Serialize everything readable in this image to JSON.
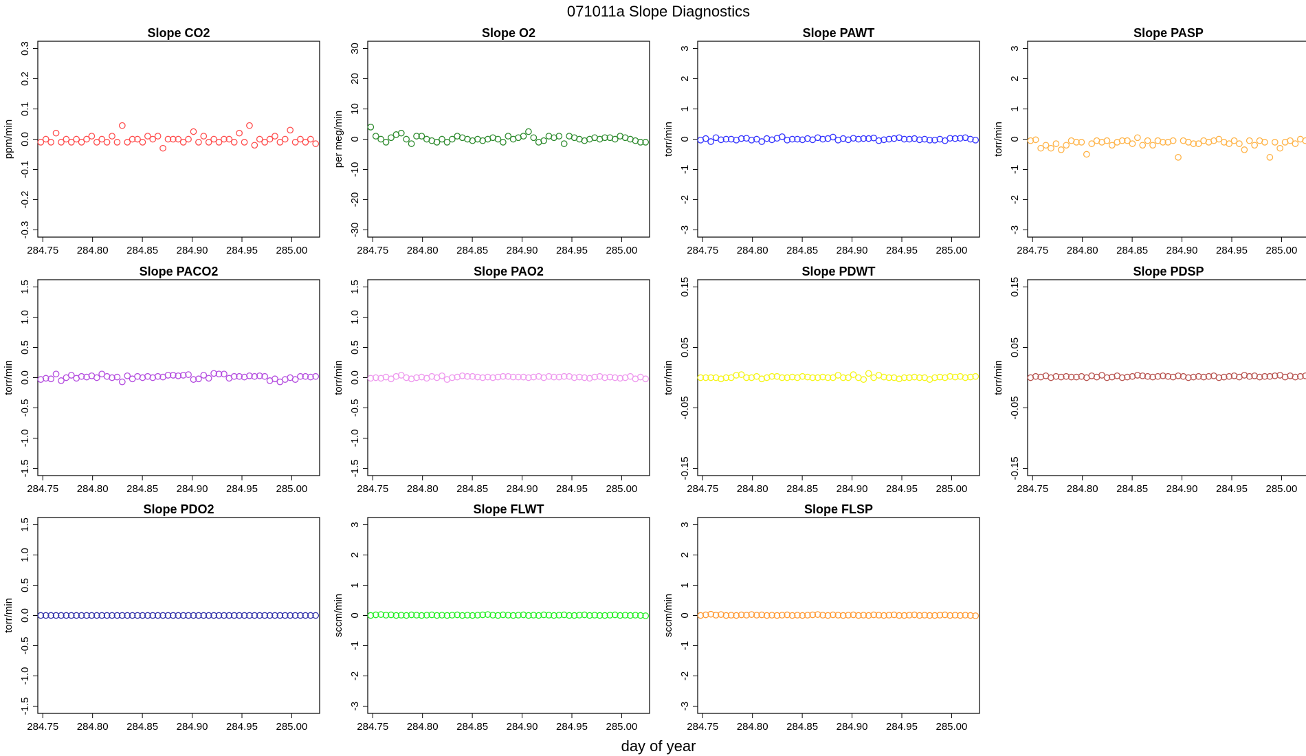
{
  "figure": {
    "title": "071011a   Slope Diagnostics",
    "xlabel": "day of year"
  },
  "chart_data": [
    {
      "type": "scatter",
      "title": "Slope CO2",
      "ylabel": "ppm/min",
      "color": "#ff4d4d",
      "ylim": [
        -0.3,
        0.3
      ],
      "yticks": [
        "-0.3",
        "-0.2",
        "-0.1",
        "0.0",
        "0.1",
        "0.2",
        "0.3"
      ],
      "xlim": [
        284.745,
        285.028
      ],
      "xticks": [
        "284.75",
        "284.80",
        "284.85",
        "284.90",
        "284.95",
        "285.00"
      ],
      "values": [
        -0.01,
        0.0,
        -0.01,
        0.02,
        -0.01,
        0.0,
        -0.01,
        0.0,
        -0.01,
        0.0,
        0.01,
        -0.01,
        0.0,
        -0.01,
        0.01,
        -0.01,
        0.045,
        -0.01,
        0.0,
        0.0,
        -0.01,
        0.01,
        0.0,
        0.01,
        -0.03,
        0.0,
        0.0,
        0.0,
        -0.01,
        0.0,
        0.025,
        -0.01,
        0.01,
        -0.01,
        0.0,
        -0.01,
        0.0,
        0.0,
        -0.01,
        0.02,
        -0.01,
        0.045,
        -0.02,
        0.0,
        -0.01,
        0.0,
        0.01,
        -0.01,
        0.0,
        0.03,
        -0.01,
        0.0,
        -0.01,
        0.0,
        -0.015
      ]
    },
    {
      "type": "scatter",
      "title": "Slope O2",
      "ylabel": "per meg/min",
      "color": "#2e8b2e",
      "ylim": [
        -30,
        30
      ],
      "yticks": [
        "-30",
        "-20",
        "-10",
        "0",
        "10",
        "20",
        "30"
      ],
      "xlim": [
        284.745,
        285.028
      ],
      "xticks": [
        "284.75",
        "284.80",
        "284.85",
        "284.90",
        "284.95",
        "285.00"
      ],
      "values": [
        4.0,
        1.0,
        0.0,
        -1.0,
        0.5,
        1.5,
        2.0,
        0.0,
        -1.5,
        1.0,
        1.0,
        0.0,
        -0.5,
        -1.0,
        0.0,
        -1.0,
        0.0,
        1.0,
        0.5,
        0.0,
        -0.5,
        0.0,
        -0.5,
        0.0,
        0.5,
        0.0,
        -1.0,
        1.0,
        0.0,
        0.5,
        1.0,
        2.5,
        0.5,
        -1.0,
        -0.5,
        1.0,
        0.5,
        1.0,
        -1.5,
        1.0,
        0.5,
        0.0,
        -0.5,
        0.0,
        0.5,
        0.0,
        0.5,
        0.5,
        0.0,
        1.0,
        0.5,
        0.0,
        -0.5,
        -1.0,
        -1.0
      ]
    },
    {
      "type": "scatter",
      "title": "Slope PAWT",
      "ylabel": "torr/min",
      "color": "#3333ff",
      "ylim": [
        -3,
        3
      ],
      "yticks": [
        "-3",
        "-2",
        "-1",
        "0",
        "1",
        "2",
        "3"
      ],
      "xlim": [
        284.745,
        285.028
      ],
      "xticks": [
        "284.75",
        "284.80",
        "284.85",
        "284.90",
        "284.95",
        "285.00"
      ],
      "values": [
        -0.03,
        0.02,
        -0.08,
        0.05,
        -0.02,
        0.0,
        0.0,
        -0.03,
        0.02,
        0.03,
        -0.03,
        0.0,
        -0.08,
        0.02,
        -0.02,
        0.03,
        0.08,
        -0.03,
        0.0,
        0.0,
        -0.02,
        0.02,
        -0.02,
        0.05,
        0.0,
        0.02,
        0.07,
        -0.03,
        0.02,
        -0.02,
        0.03,
        0.0,
        0.02,
        0.02,
        0.04,
        -0.05,
        -0.02,
        0.0,
        0.02,
        0.05,
        0.0,
        0.0,
        0.02,
        -0.02,
        0.0,
        -0.03,
        -0.03,
        0.0,
        -0.05,
        0.03,
        0.02,
        0.03,
        0.05,
        0.0,
        -0.03
      ]
    },
    {
      "type": "scatter",
      "title": "Slope PASP",
      "ylabel": "torr/min",
      "color": "#ffb347",
      "ylim": [
        -3,
        3
      ],
      "yticks": [
        "-3",
        "-2",
        "-1",
        "0",
        "1",
        "2",
        "3"
      ],
      "xlim": [
        284.745,
        285.028
      ],
      "xticks": [
        "284.75",
        "284.80",
        "284.85",
        "284.90",
        "284.95",
        "285.00"
      ],
      "values": [
        -0.05,
        -0.02,
        -0.3,
        -0.2,
        -0.3,
        -0.15,
        -0.35,
        -0.2,
        -0.05,
        -0.1,
        -0.1,
        -0.5,
        -0.15,
        -0.05,
        -0.1,
        -0.05,
        -0.2,
        -0.1,
        -0.05,
        -0.05,
        -0.15,
        0.05,
        -0.2,
        -0.05,
        -0.2,
        -0.05,
        -0.1,
        -0.1,
        -0.05,
        -0.6,
        -0.05,
        -0.1,
        -0.15,
        -0.15,
        -0.05,
        -0.1,
        -0.05,
        0.0,
        -0.1,
        -0.15,
        -0.05,
        -0.15,
        -0.35,
        -0.05,
        -0.2,
        -0.05,
        -0.1,
        -0.6,
        -0.1,
        -0.3,
        -0.1,
        -0.05,
        -0.15,
        0.0,
        -0.05
      ]
    },
    {
      "type": "scatter",
      "title": "Slope PACO2",
      "ylabel": "torr/min",
      "color": "#b44ddf",
      "ylim": [
        -1.5,
        1.5
      ],
      "yticks": [
        "-1.5",
        "-1.0",
        "-0.5",
        "0.0",
        "0.5",
        "1.0",
        "1.5"
      ],
      "xlim": [
        284.745,
        285.028
      ],
      "xticks": [
        "284.75",
        "284.80",
        "284.85",
        "284.90",
        "284.95",
        "285.00"
      ],
      "values": [
        -0.03,
        -0.01,
        -0.02,
        0.06,
        -0.05,
        0.0,
        0.04,
        -0.01,
        0.02,
        0.01,
        0.03,
        0.0,
        0.06,
        0.02,
        0.0,
        0.01,
        -0.07,
        0.03,
        -0.02,
        0.02,
        0.0,
        0.02,
        0.0,
        0.02,
        0.01,
        0.04,
        0.04,
        0.03,
        0.04,
        0.05,
        -0.03,
        -0.02,
        0.04,
        -0.01,
        0.07,
        0.06,
        0.06,
        -0.01,
        0.02,
        0.02,
        0.01,
        0.03,
        0.02,
        0.03,
        0.02,
        -0.05,
        -0.02,
        -0.07,
        -0.03,
        0.0,
        -0.03,
        0.02,
        0.02,
        0.01,
        0.02
      ]
    },
    {
      "type": "scatter",
      "title": "Slope PAO2",
      "ylabel": "torr/min",
      "color": "#ee99ee",
      "ylim": [
        -1.5,
        1.5
      ],
      "yticks": [
        "-1.5",
        "-1.0",
        "-0.5",
        "0.0",
        "0.5",
        "1.0",
        "1.5"
      ],
      "xlim": [
        284.745,
        285.028
      ],
      "xticks": [
        "284.75",
        "284.80",
        "284.85",
        "284.90",
        "284.95",
        "285.00"
      ],
      "values": [
        -0.01,
        0.0,
        -0.01,
        0.01,
        -0.02,
        0.02,
        0.04,
        0.0,
        -0.02,
        0.0,
        0.01,
        -0.01,
        0.02,
        0.0,
        0.03,
        -0.03,
        0.0,
        0.01,
        0.03,
        0.02,
        0.02,
        0.01,
        0.0,
        0.01,
        0.0,
        0.01,
        0.02,
        0.02,
        0.01,
        0.01,
        0.01,
        0.0,
        0.01,
        0.02,
        0.0,
        0.02,
        0.01,
        0.01,
        0.02,
        0.02,
        0.0,
        0.01,
        0.0,
        -0.01,
        0.01,
        0.02,
        0.0,
        0.01,
        0.0,
        -0.01,
        0.0,
        0.02,
        -0.02,
        0.01,
        -0.02
      ]
    },
    {
      "type": "scatter",
      "title": "Slope PDWT",
      "ylabel": "torr/min",
      "color": "#f5f51a",
      "ylim": [
        -0.15,
        0.15
      ],
      "yticks": [
        "-0.15",
        "-0.05",
        "0.05",
        "0.15"
      ],
      "xlim": [
        284.745,
        285.028
      ],
      "xticks": [
        "284.75",
        "284.80",
        "284.85",
        "284.90",
        "284.95",
        "285.00"
      ],
      "values": [
        0.0,
        0.0,
        0.0,
        0.0,
        -0.002,
        0.0,
        0.0,
        0.004,
        0.005,
        0.0,
        0.0,
        0.002,
        -0.002,
        0.0,
        0.002,
        0.002,
        0.0,
        0.0,
        0.001,
        0.0,
        0.002,
        0.001,
        0.0,
        0.0,
        0.001,
        0.0,
        0.0,
        0.004,
        0.0,
        0.0,
        0.005,
        0.0,
        -0.003,
        0.007,
        0.0,
        0.004,
        0.001,
        0.0,
        0.0,
        -0.002,
        0.0,
        0.0,
        0.001,
        0.0,
        0.0,
        -0.003,
        0.0,
        0.001,
        0.0,
        0.002,
        0.001,
        0.002,
        0.0,
        0.001,
        0.002
      ]
    },
    {
      "type": "scatter",
      "title": "Slope PDSP",
      "ylabel": "torr/min",
      "color": "#b85450",
      "ylim": [
        -0.15,
        0.15
      ],
      "yticks": [
        "-0.15",
        "-0.05",
        "0.05",
        "0.15"
      ],
      "xlim": [
        284.745,
        285.028
      ],
      "xticks": [
        "284.75",
        "284.80",
        "284.85",
        "284.90",
        "284.95",
        "285.00"
      ],
      "values": [
        0.0,
        0.002,
        0.001,
        0.003,
        0.0,
        0.002,
        0.001,
        0.002,
        0.001,
        0.001,
        0.002,
        0.0,
        0.003,
        0.001,
        0.004,
        0.0,
        0.001,
        0.003,
        0.0,
        0.001,
        0.002,
        0.004,
        0.003,
        0.002,
        0.001,
        0.002,
        0.003,
        0.002,
        0.001,
        0.003,
        0.002,
        0.0,
        0.001,
        0.002,
        0.001,
        0.002,
        0.003,
        0.0,
        0.001,
        0.002,
        0.003,
        0.001,
        0.004,
        0.002,
        0.003,
        0.001,
        0.002,
        0.002,
        0.003,
        0.004,
        0.001,
        0.003,
        0.001,
        0.002,
        0.003
      ]
    },
    {
      "type": "scatter",
      "title": "Slope PDO2",
      "ylabel": "torr/min",
      "color": "#3333aa",
      "ylim": [
        -1.5,
        1.5
      ],
      "yticks": [
        "-1.5",
        "-1.0",
        "-0.5",
        "0.0",
        "0.5",
        "1.0",
        "1.5"
      ],
      "xlim": [
        284.745,
        285.028
      ],
      "xticks": [
        "284.75",
        "284.80",
        "284.85",
        "284.90",
        "284.95",
        "285.00"
      ],
      "values": [
        0,
        0,
        0,
        0,
        0,
        0,
        0,
        0,
        0,
        0,
        0,
        0,
        0,
        0,
        0,
        0,
        0,
        0,
        0,
        0,
        0,
        0,
        0,
        0,
        0,
        0,
        0,
        0,
        0,
        0,
        0,
        0,
        0,
        0,
        0,
        0,
        0,
        0,
        0,
        0,
        0,
        0,
        0,
        0,
        0,
        0,
        0,
        0,
        0,
        0,
        0,
        0,
        0,
        0,
        0
      ]
    },
    {
      "type": "scatter",
      "title": "Slope FLWT",
      "ylabel": "sccm/min",
      "color": "#22ee22",
      "ylim": [
        -3,
        3
      ],
      "yticks": [
        "-3",
        "-2",
        "-1",
        "0",
        "1",
        "2",
        "3"
      ],
      "xlim": [
        284.745,
        285.028
      ],
      "xticks": [
        "284.75",
        "284.80",
        "284.85",
        "284.90",
        "284.95",
        "285.00"
      ],
      "values": [
        0.0,
        0.02,
        0.03,
        0.01,
        0.02,
        0.0,
        0.01,
        0.0,
        0.02,
        0.01,
        0.0,
        0.01,
        0.02,
        0.0,
        0.01,
        0.0,
        0.01,
        0.02,
        0.0,
        0.01,
        0.0,
        0.01,
        0.02,
        0.03,
        0.01,
        0.0,
        0.02,
        0.01,
        0.0,
        0.01,
        0.02,
        0.0,
        0.01,
        0.0,
        0.02,
        0.01,
        0.0,
        0.01,
        0.02,
        0.0,
        0.0,
        0.01,
        0.02,
        0.0,
        0.01,
        0.0,
        0.0,
        0.01,
        0.02,
        0.0,
        0.01,
        0.0,
        0.01,
        0.0,
        -0.01
      ]
    },
    {
      "type": "scatter",
      "title": "Slope FLSP",
      "ylabel": "sccm/min",
      "color": "#ff9933",
      "ylim": [
        -3,
        3
      ],
      "yticks": [
        "-3",
        "-2",
        "-1",
        "0",
        "1",
        "2",
        "3"
      ],
      "xlim": [
        284.745,
        285.028
      ],
      "xticks": [
        "284.75",
        "284.80",
        "284.85",
        "284.90",
        "284.95",
        "285.00"
      ],
      "values": [
        0.0,
        0.02,
        0.04,
        0.01,
        0.03,
        0.0,
        0.01,
        0.0,
        0.02,
        0.01,
        0.03,
        0.01,
        0.02,
        0.0,
        0.01,
        0.0,
        0.01,
        0.02,
        0.0,
        0.01,
        0.0,
        0.01,
        0.02,
        0.03,
        0.01,
        0.0,
        0.02,
        0.01,
        0.0,
        0.01,
        0.02,
        0.0,
        0.01,
        0.0,
        0.02,
        0.01,
        0.0,
        0.01,
        0.02,
        0.0,
        0.0,
        0.01,
        0.02,
        0.0,
        0.01,
        0.0,
        0.0,
        0.01,
        0.02,
        0.0,
        0.01,
        0.0,
        0.01,
        0.0,
        -0.01
      ]
    }
  ]
}
